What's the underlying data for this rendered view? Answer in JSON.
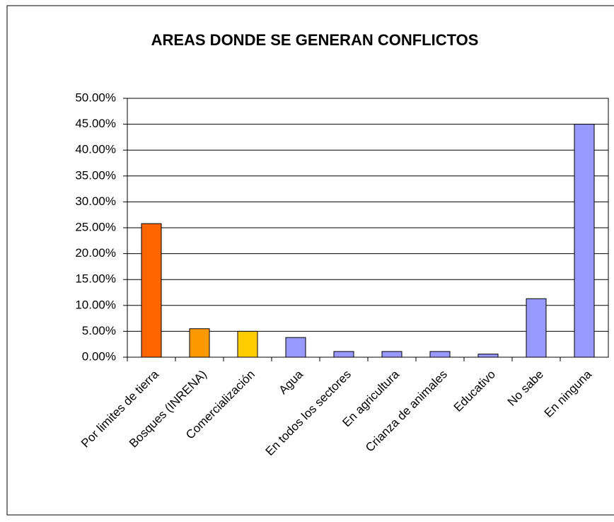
{
  "chart_data": {
    "type": "bar",
    "title": "AREAS DONDE SE GENERAN CONFLICTOS",
    "categories": [
      "Por limites de tierra",
      "Bosques (INRENA)",
      "Comercialización",
      "Agua",
      "En todos los sectores",
      "En agricultura",
      "Crianza de animales",
      "Educativo",
      "No sabe",
      "En ninguna"
    ],
    "values": [
      25.8,
      5.5,
      5.0,
      3.8,
      1.1,
      1.1,
      1.1,
      0.6,
      11.3,
      45.0
    ],
    "colors": [
      "#ff6600",
      "#ff9900",
      "#ffcc00",
      "#9999ff",
      "#9999ff",
      "#9999ff",
      "#9999ff",
      "#9999ff",
      "#9999ff",
      "#9999ff"
    ],
    "ylim": [
      0,
      50
    ],
    "yticks": [
      {
        "value": 0,
        "label": "0.00%"
      },
      {
        "value": 5,
        "label": "5.00%"
      },
      {
        "value": 10,
        "label": "10.00%"
      },
      {
        "value": 15,
        "label": "15.00%"
      },
      {
        "value": 20,
        "label": "20.00%"
      },
      {
        "value": 25,
        "label": "25.00%"
      },
      {
        "value": 30,
        "label": "30.00%"
      },
      {
        "value": 35,
        "label": "35.00%"
      },
      {
        "value": 40,
        "label": "40.00%"
      },
      {
        "value": 45,
        "label": "45.00%"
      },
      {
        "value": 50,
        "label": "50.00%"
      }
    ],
    "grid": true
  }
}
